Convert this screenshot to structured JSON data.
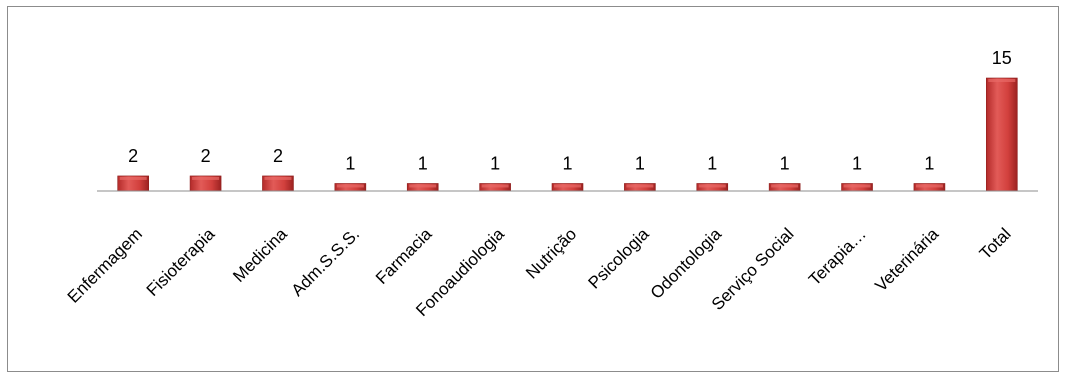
{
  "chart_data": {
    "type": "bar",
    "title": "",
    "xlabel": "",
    "ylabel": "",
    "categories": [
      "Enfermagem",
      "Fisioterapia",
      "Medicina",
      "Adm.S.S.S.",
      "Farmacia",
      "Fonoaudiologia",
      "Nutrição",
      "Psicologia",
      "Odontologia",
      "Serviço Social",
      "Terapia…",
      "Veterinária",
      "Total"
    ],
    "values": [
      2,
      2,
      2,
      1,
      1,
      1,
      1,
      1,
      1,
      1,
      1,
      1,
      15
    ],
    "ylim": [
      0,
      15
    ],
    "grid": false,
    "legend": "none",
    "colors": {
      "bar": "#c0302f",
      "bar_light": "#e86a67",
      "bar_dark": "#8e1f1d",
      "axis": "#8c8c8c"
    }
  }
}
